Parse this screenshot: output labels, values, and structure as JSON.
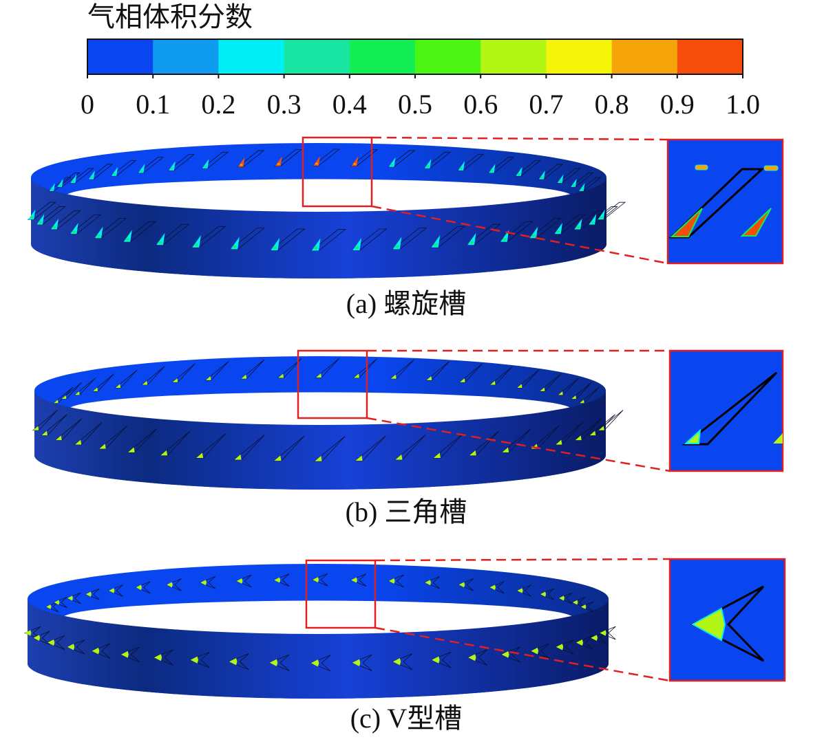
{
  "colorbar": {
    "title": "气相体积分数",
    "ticks": [
      0,
      0.1,
      0.2,
      0.3,
      0.4,
      0.5,
      0.6,
      0.7,
      0.8,
      0.9,
      {
        "value": 1,
        "label": "1.0"
      }
    ],
    "colors": [
      "#0a46f0",
      "#0f9cf0",
      "#00eef5",
      "#19e5a3",
      "#14ee55",
      "#4cf514",
      "#b3f514",
      "#f5f50a",
      "#f5a50a",
      "#f54d0a"
    ]
  },
  "panels": [
    {
      "caption": "(a) 螺旋槽"
    },
    {
      "caption": "(b) 三角槽"
    },
    {
      "caption": "(c) V型槽"
    }
  ]
}
